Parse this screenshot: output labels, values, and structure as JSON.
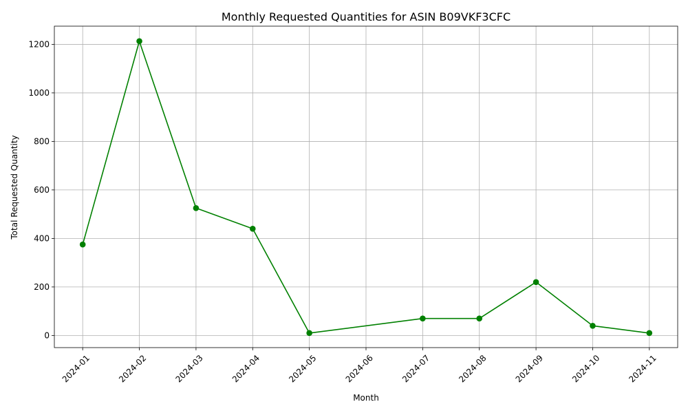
{
  "chart_data": {
    "type": "line",
    "title": "Monthly Requested Quantities for ASIN B09VKF3CFC",
    "xlabel": "Month",
    "ylabel": "Total Requested Quantity",
    "x": [
      "2024-01",
      "2024-02",
      "2024-03",
      "2024-04",
      "2024-05",
      "2024-07",
      "2024-08",
      "2024-09",
      "2024-10",
      "2024-11"
    ],
    "x_ticks": [
      "2024-01",
      "2024-02",
      "2024-03",
      "2024-04",
      "2024-05",
      "2024-06",
      "2024-07",
      "2024-08",
      "2024-09",
      "2024-10",
      "2024-11"
    ],
    "series": [
      {
        "values": [
          375,
          1213,
          525,
          440,
          10,
          70,
          70,
          220,
          40,
          10
        ],
        "color": "#008000",
        "marker": "circle"
      }
    ],
    "y_ticks": [
      0,
      200,
      400,
      600,
      800,
      1000,
      1200
    ],
    "ylim": [
      -50,
      1275
    ],
    "grid": true,
    "x_tick_rotation_deg": 45
  }
}
